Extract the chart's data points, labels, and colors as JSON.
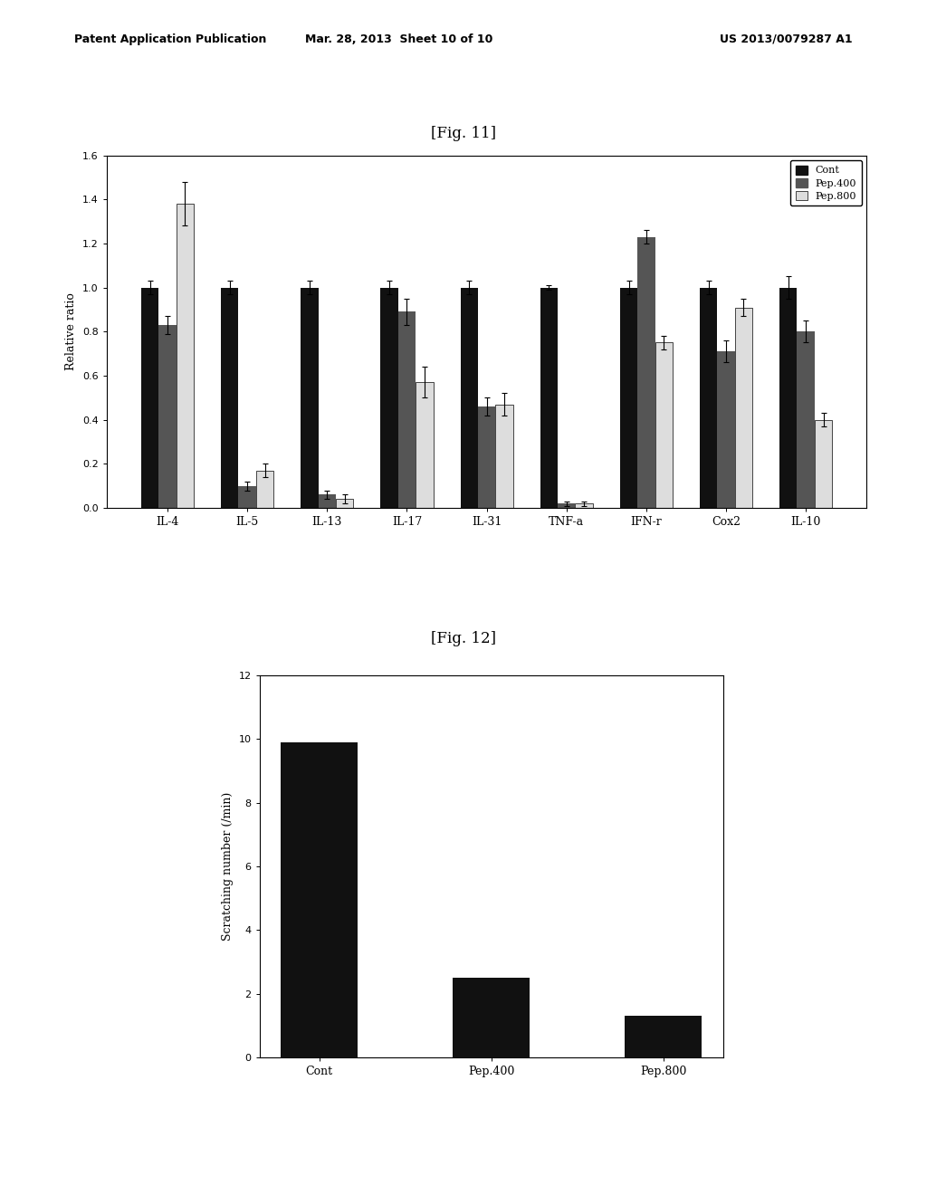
{
  "fig11": {
    "title": "[Fig. 11]",
    "categories": [
      "IL-4",
      "IL-5",
      "IL-13",
      "IL-17",
      "IL-31",
      "TNF-a",
      "IFN-r",
      "Cox2",
      "IL-10"
    ],
    "cont": [
      1.0,
      1.0,
      1.0,
      1.0,
      1.0,
      1.0,
      1.0,
      1.0,
      1.0
    ],
    "pep400": [
      0.83,
      0.1,
      0.06,
      0.89,
      0.46,
      0.02,
      1.23,
      0.71,
      0.8
    ],
    "pep800": [
      1.38,
      0.17,
      0.04,
      0.57,
      0.47,
      0.02,
      0.75,
      0.91,
      0.4
    ],
    "cont_err": [
      0.03,
      0.03,
      0.03,
      0.03,
      0.03,
      0.01,
      0.03,
      0.03,
      0.05
    ],
    "pep400_err": [
      0.04,
      0.02,
      0.02,
      0.06,
      0.04,
      0.01,
      0.03,
      0.05,
      0.05
    ],
    "pep800_err": [
      0.1,
      0.03,
      0.02,
      0.07,
      0.05,
      0.01,
      0.03,
      0.04,
      0.03
    ],
    "ylabel": "Relative ratio",
    "ylim": [
      0,
      1.6
    ],
    "yticks": [
      0,
      0.2,
      0.4,
      0.6,
      0.8,
      1.0,
      1.2,
      1.4,
      1.6
    ],
    "bar_width": 0.22,
    "cont_color": "#111111",
    "pep400_color": "#555555",
    "pep800_color": "#dddddd",
    "legend_labels": [
      "Cont",
      "Pep.400",
      "Pep.800"
    ]
  },
  "fig12": {
    "title": "[Fig. 12]",
    "categories": [
      "Cont",
      "Pep.400",
      "Pep.800"
    ],
    "values": [
      9.9,
      2.5,
      1.3
    ],
    "ylabel": "Scratching number (/min)",
    "ylim": [
      0,
      12
    ],
    "yticks": [
      0,
      2,
      4,
      6,
      8,
      10,
      12
    ],
    "bar_color": "#111111",
    "bar_width": 0.45
  },
  "header_left": "Patent Application Publication",
  "header_mid": "Mar. 28, 2013  Sheet 10 of 10",
  "header_right": "US 2013/0079287 A1",
  "background_color": "#ffffff",
  "page_bg": "#e8e8e8"
}
